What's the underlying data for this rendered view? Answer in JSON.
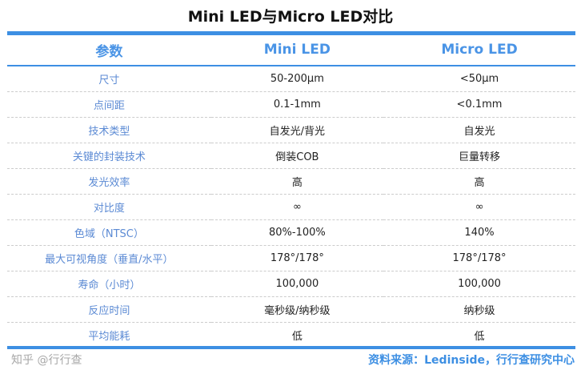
{
  "title": "Mini LED与Micro LED对比",
  "headers": [
    "参数",
    "Mini LED",
    "Micro LED"
  ],
  "rows": [
    [
      "尺寸",
      "50-200μm",
      "<50μm"
    ],
    [
      "点间距",
      "0.1-1mm",
      "<0.1mm"
    ],
    [
      "技术类型",
      "自发光/背光",
      "自发光"
    ],
    [
      "关键的封装技术",
      "倒装COB",
      "巨量转移"
    ],
    [
      "发光效率",
      "高",
      "高"
    ],
    [
      "对比度",
      "∞",
      "∞"
    ],
    [
      "色域（NTSC）",
      "80%-100%",
      "140%"
    ],
    [
      "最大可视角度（垂直/水平）",
      "178°/178°",
      "178°/178°"
    ],
    [
      "寿命（小时）",
      "100,000",
      "100,000"
    ],
    [
      "反应时间",
      "毫秒级/纳秒级",
      "纳秒级"
    ],
    [
      "平均能耗",
      "低",
      "低"
    ]
  ],
  "source": "资料来源：Ledinside，行行查研究中心",
  "watermark": "知乎 @行行查",
  "colors": {
    "accent": "#3d8fe3",
    "label": "#5b8ad4"
  }
}
